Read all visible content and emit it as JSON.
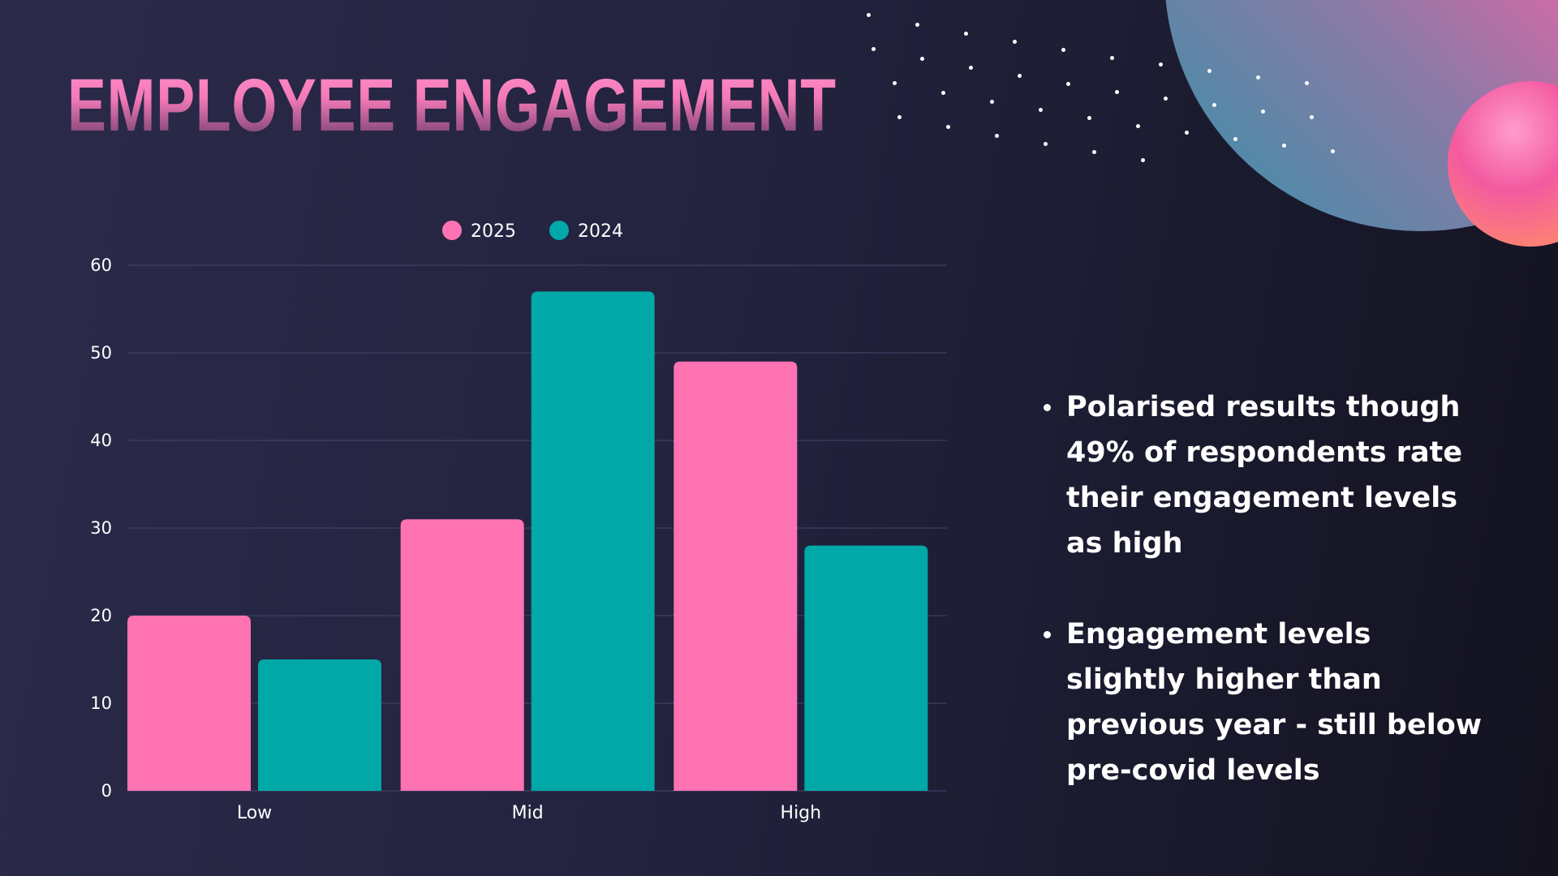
{
  "title": "EMPLOYEE ENGAGEMENT",
  "colors": {
    "series_2025": "#ff73b3",
    "series_2024": "#00a8a8",
    "grid": "#45456a",
    "text": "#ffffff"
  },
  "bullets": [
    "Polarised results though 49% of respondents rate their engagement levels as high",
    "Engagement levels slightly higher than previous year - still below pre-covid levels"
  ],
  "chart_data": {
    "type": "bar",
    "categories": [
      "Low",
      "Mid",
      "High"
    ],
    "series": [
      {
        "name": "2025",
        "values": [
          20,
          31,
          49
        ],
        "color": "#ff73b3"
      },
      {
        "name": "2024",
        "values": [
          15,
          57,
          28
        ],
        "color": "#00a8a8"
      }
    ],
    "ylim": [
      0,
      60
    ],
    "yticks": [
      0,
      10,
      20,
      30,
      40,
      50,
      60
    ],
    "grid": true,
    "legend": "top-center",
    "xlabel": "",
    "ylabel": ""
  }
}
